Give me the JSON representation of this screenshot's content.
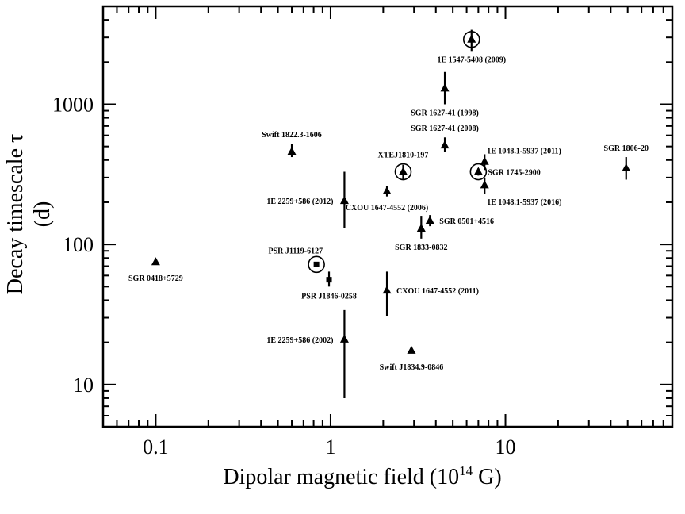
{
  "chart_data": {
    "type": "scatter",
    "title": "",
    "xlabel": "Dipolar magnetic field (10",
    "xlabel_exp": "14",
    "xlabel_end": " G)",
    "ylabel_line1": "Decay timescale τ",
    "ylabel_line2": "(d)",
    "x_scale": "log",
    "y_scale": "log",
    "xlim": [
      0.05,
      90
    ],
    "ylim": [
      5,
      5000
    ],
    "x_ticks": [
      {
        "value": 0.1,
        "label": "0.1"
      },
      {
        "value": 1,
        "label": "1"
      },
      {
        "value": 10,
        "label": "10"
      }
    ],
    "y_ticks": [
      {
        "value": 10,
        "label": "10"
      },
      {
        "value": 100,
        "label": "100"
      },
      {
        "value": 1000,
        "label": "1000"
      }
    ],
    "grid": false,
    "legend": "none",
    "color": "#000000",
    "points": [
      {
        "label": "1E 1547-5408 (2009)",
        "x": 6.4,
        "y": 2900,
        "err": [
          2400,
          3400
        ],
        "marker": "triangle",
        "circled": true,
        "label_pos": "below"
      },
      {
        "label": "SGR 1627-41 (1998)",
        "x": 4.5,
        "y": 1300,
        "err": [
          1000,
          1700
        ],
        "marker": "triangle",
        "circled": false,
        "label_pos": "below"
      },
      {
        "label": "Swift 1822.3-1606",
        "x": 0.6,
        "y": 460,
        "err": [
          420,
          520
        ],
        "marker": "triangle",
        "circled": false,
        "label_pos": "above"
      },
      {
        "label": "SGR 1627-41 (2008)",
        "x": 4.5,
        "y": 510,
        "err": [
          460,
          580
        ],
        "marker": "triangle",
        "circled": false,
        "label_pos": "above"
      },
      {
        "label": "1E 1048.1-5937 (2011)",
        "x": 7.6,
        "y": 390,
        "err": [
          340,
          440
        ],
        "marker": "triangle",
        "circled": false,
        "label_pos": "above-right"
      },
      {
        "label": "SGR 1806-20",
        "x": 49,
        "y": 350,
        "err": [
          290,
          420
        ],
        "marker": "triangle",
        "circled": false,
        "label_pos": "above"
      },
      {
        "label": "XTEJ1810-197",
        "x": 2.6,
        "y": 330,
        "err": [
          290,
          370
        ],
        "marker": "triangle",
        "circled": true,
        "label_pos": "above"
      },
      {
        "label": "SGR 1745-2900",
        "x": 7.0,
        "y": 330,
        "err": [
          310,
          350
        ],
        "marker": "triangle",
        "circled": true,
        "label_pos": "right"
      },
      {
        "label": "1E 1048.1-5937 (2016)",
        "x": 7.6,
        "y": 265,
        "err": [
          230,
          300
        ],
        "marker": "triangle",
        "circled": false,
        "label_pos": "below-right"
      },
      {
        "label": "CXOU 1647-4552 (2006)",
        "x": 2.1,
        "y": 240,
        "err": [
          220,
          260
        ],
        "marker": "triangle",
        "circled": false,
        "label_pos": "below"
      },
      {
        "label": "1E 2259+586 (2012)",
        "x": 1.2,
        "y": 205,
        "err": [
          130,
          330
        ],
        "marker": "triangle",
        "circled": false,
        "label_pos": "left"
      },
      {
        "label": "SGR 0501+4516",
        "x": 3.7,
        "y": 148,
        "err": [
          135,
          162
        ],
        "marker": "triangle",
        "circled": false,
        "label_pos": "right"
      },
      {
        "label": "SGR 1833-0832",
        "x": 3.3,
        "y": 130,
        "err": [
          110,
          160
        ],
        "marker": "triangle",
        "circled": false,
        "label_pos": "below"
      },
      {
        "label": "SGR 0418+5729",
        "x": 0.1,
        "y": 75,
        "err": null,
        "marker": "triangle",
        "circled": false,
        "label_pos": "below"
      },
      {
        "label": "PSR J1119-6127",
        "x": 0.83,
        "y": 72,
        "err": null,
        "marker": "square",
        "circled": true,
        "label_pos": "above-left"
      },
      {
        "label": "PSR J1846-0258",
        "x": 0.98,
        "y": 56,
        "err": [
          50,
          64
        ],
        "marker": "square",
        "circled": false,
        "label_pos": "below"
      },
      {
        "label": "CXOU 1647-4552 (2011)",
        "x": 2.1,
        "y": 47,
        "err": [
          31,
          64
        ],
        "marker": "triangle",
        "circled": false,
        "label_pos": "right"
      },
      {
        "label": "1E 2259+586 (2002)",
        "x": 1.2,
        "y": 21,
        "err": [
          8,
          34
        ],
        "marker": "triangle",
        "circled": false,
        "label_pos": "left"
      },
      {
        "label": "Swift J1834.9-0846",
        "x": 2.9,
        "y": 17.5,
        "err": null,
        "marker": "triangle",
        "circled": false,
        "label_pos": "below"
      }
    ]
  }
}
